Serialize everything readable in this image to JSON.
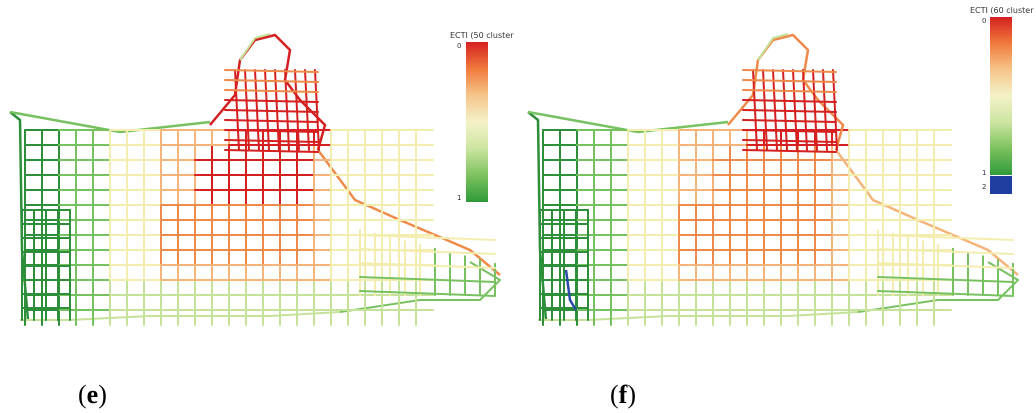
{
  "panels": [
    {
      "id": "e",
      "label_open": "(",
      "label_letter": "e",
      "label_close": ")",
      "legend": {
        "title": "ECTI (50 cluster",
        "ticks": [
          "0",
          "1"
        ],
        "gradient": [
          "#d42020",
          "#f07a3c",
          "#f6c58a",
          "#f4f2c8",
          "#cce5a0",
          "#7cc25e",
          "#2f9a3a"
        ]
      }
    },
    {
      "id": "f",
      "label_open": "(",
      "label_letter": "f",
      "label_close": ")",
      "legend": {
        "title": "ECTI (60 cluster",
        "ticks": [
          "0",
          "1",
          "2"
        ],
        "gradient": [
          "#d42020",
          "#f07a3c",
          "#f6c58a",
          "#f4f2c8",
          "#cce5a0",
          "#7cc25e",
          "#2f9a3a"
        ],
        "extra_color": "#1f3fa0"
      }
    }
  ],
  "colors": {
    "red": "#d42020",
    "orange": "#ee8a4a",
    "lightorange": "#f4b47a",
    "yellow": "#f3eeb0",
    "lightgreen": "#c6e29a",
    "green": "#78c160",
    "darkgreen": "#2e8f3a",
    "blue": "#2a4aa8"
  }
}
